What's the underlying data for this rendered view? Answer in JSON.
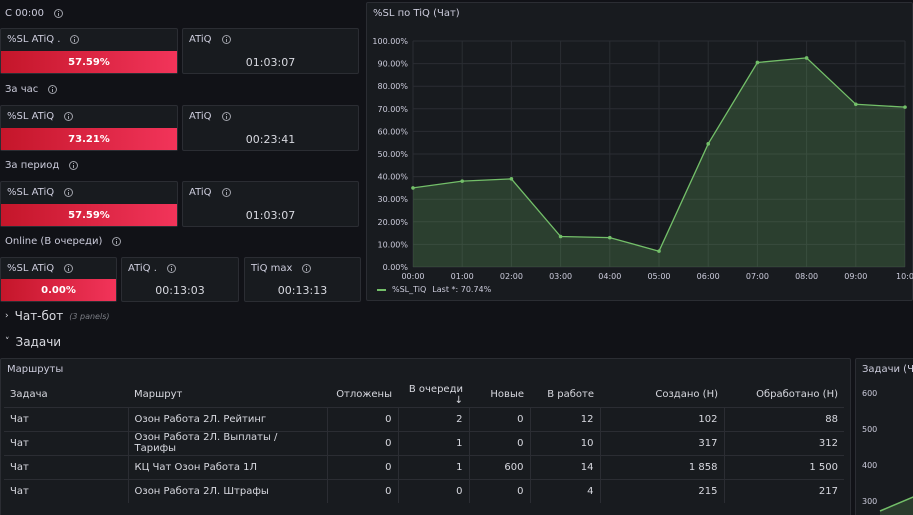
{
  "rows": {
    "since_midnight": "С 00:00",
    "last_hour": "За час",
    "period": "За период",
    "online": "Online (В очереди)"
  },
  "stats": {
    "s1_sl_title": "%SL ATiQ .",
    "s1_sl_value": "57.59%",
    "s1_atiq_title": "ATiQ",
    "s1_atiq_value": "01:03:07",
    "s2_sl_title": "%SL ATiQ",
    "s2_sl_value": "73.21%",
    "s2_atiq_title": "ATiQ",
    "s2_atiq_value": "00:23:41",
    "s3_sl_title": "%SL ATiQ",
    "s3_sl_value": "57.59%",
    "s3_atiq_title": "ATiQ",
    "s3_atiq_value": "01:03:07",
    "s4_sl_title": "%SL ATiQ",
    "s4_sl_value": "0.00%",
    "s4_atiq_title": "ATiQ .",
    "s4_atiq_value": "00:13:03",
    "s4_tiq_title": "TiQ max",
    "s4_tiq_value": "00:13:13"
  },
  "chart_panel": {
    "title": "%SL по TiQ (Чат)",
    "legend_name": "%SL_TiQ",
    "legend_last": "Last *: 70.74%"
  },
  "sections": {
    "chatbot": "Чат-бот",
    "chatbot_meta": "(3 panels)",
    "tasks": "Задачи"
  },
  "routes_panel": {
    "title": "Маршруты",
    "columns": [
      "Задача",
      "Маршрут",
      "Отложены",
      "В очереди ↓",
      "Новые",
      "В работе",
      "Создано (Н)",
      "Обработано (Н)"
    ],
    "rows": [
      [
        "Чат",
        "Озон Работа 2Л. Рейтинг",
        "0",
        "2",
        "0",
        "12",
        "102",
        "88"
      ],
      [
        "Чат",
        "Озон Работа 2Л. Выплаты / Тарифы",
        "0",
        "1",
        "0",
        "10",
        "317",
        "312"
      ],
      [
        "Чат",
        "КЦ Чат Озон Работа 1Л",
        "0",
        "1",
        "600",
        "14",
        "1 858",
        "1 500"
      ],
      [
        "Чат",
        "Озон Работа 2Л. Штрафы",
        "0",
        "0",
        "0",
        "4",
        "215",
        "217"
      ]
    ]
  },
  "tasks_chart_panel": {
    "title": "Задачи (Ча",
    "yticks": [
      "600",
      "500",
      "400",
      "300"
    ]
  },
  "colors": {
    "accent_green": "#73bf69",
    "sl_red": "#f2345a",
    "background": "#111217",
    "panel": "#181b1f"
  },
  "chart_data": {
    "type": "area",
    "x": [
      "00:00",
      "01:00",
      "02:00",
      "03:00",
      "04:00",
      "05:00",
      "06:00",
      "07:00",
      "08:00",
      "09:00",
      "10:0"
    ],
    "series": [
      {
        "name": "%SL_TiQ",
        "values": [
          35.0,
          38.0,
          39.0,
          13.5,
          13.0,
          7.0,
          54.5,
          90.5,
          92.5,
          72.0,
          70.74
        ]
      }
    ],
    "yticks": [
      "0.00%",
      "10.00%",
      "20.00%",
      "30.00%",
      "40.00%",
      "50.00%",
      "60.00%",
      "70.00%",
      "80.00%",
      "90.00%",
      "100.00%"
    ],
    "ylim": [
      0,
      100
    ],
    "grid": true,
    "legend_position": "bottom-left"
  }
}
